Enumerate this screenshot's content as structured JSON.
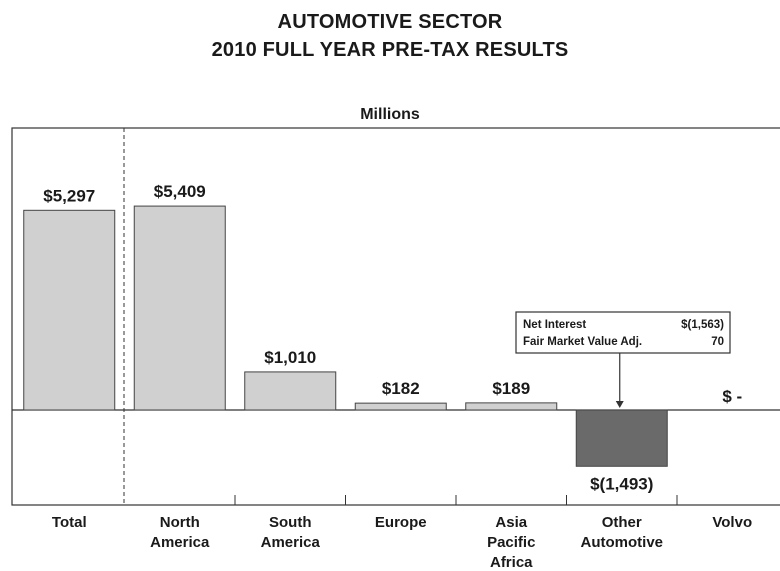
{
  "chart_data": {
    "type": "bar",
    "title_line1": "AUTOMOTIVE SECTOR",
    "title_line2": "2010 FULL YEAR PRE-TAX RESULTS",
    "subtitle": "Millions",
    "categories": [
      [
        "Total"
      ],
      [
        "North",
        "America"
      ],
      [
        "South",
        "America"
      ],
      [
        "Europe"
      ],
      [
        "Asia",
        "Pacific",
        "Africa"
      ],
      [
        "Other",
        "Automotive"
      ],
      [
        "Volvo"
      ]
    ],
    "values": [
      5297,
      5409,
      1010,
      182,
      189,
      -1493,
      0
    ],
    "data_labels": [
      "$5,297",
      "$5,409",
      "$1,010",
      "$182",
      "$189",
      "$(1,493)",
      "$ -"
    ],
    "ylim": [
      -2650,
      7350
    ],
    "colors": {
      "positive_bar": "#d0d0d0",
      "negative_bar": "#6a6a6a",
      "bar_stroke": "#444444"
    },
    "callout": {
      "category_index": 5,
      "rows": [
        {
          "label": "Net Interest",
          "value": "$(1,563)"
        },
        {
          "label": "Fair Market Value Adj.",
          "value": "70"
        }
      ]
    }
  }
}
